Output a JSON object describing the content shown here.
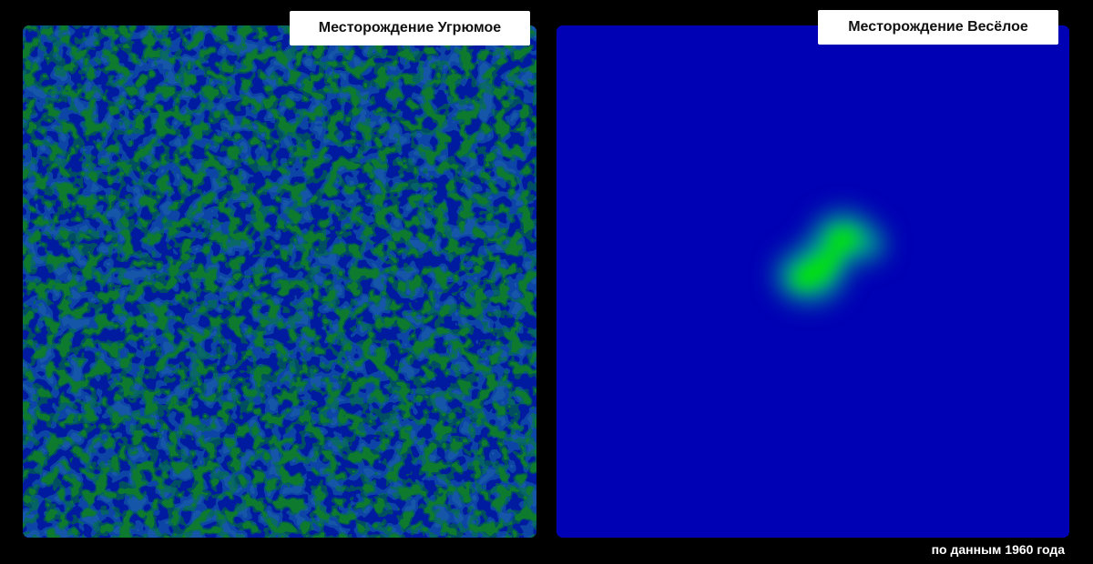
{
  "left_map": {
    "title": "Месторождение Угрюмое",
    "colors": {
      "background": "#001aa0",
      "mid": "#1457a8",
      "deposit": "#0b7a2e"
    },
    "pattern": "dense scattered small deposits"
  },
  "right_map": {
    "title": "Месторождение Весёлое",
    "colors": {
      "background": "#0000b4",
      "halo": "#00b08c",
      "deposit": "#00e600"
    },
    "pattern": "single concentrated deposit near center"
  },
  "footnote": "по данным 1960 года"
}
